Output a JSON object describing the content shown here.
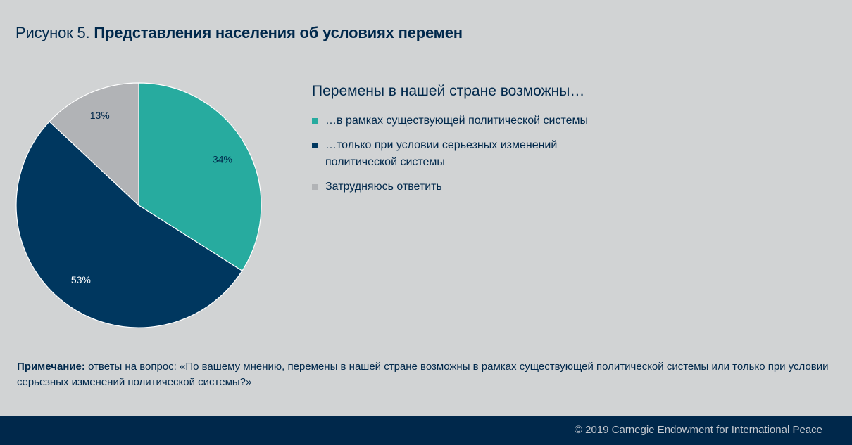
{
  "figure": {
    "prefix": "Рисунок 5.",
    "title": "Представления населения об условиях перемен"
  },
  "legend": {
    "title": "Перемены в нашей стране возможны…",
    "items": [
      {
        "label": "…в рамках существующей политической системы",
        "color": "#27ab9f"
      },
      {
        "label": "…только при условии серьезных изменений политической системы",
        "color": "#00375f"
      },
      {
        "label": "Затрудняюсь ответить",
        "color": "#b1b3b6"
      }
    ]
  },
  "chart_data": {
    "type": "pie",
    "series": [
      {
        "name": "…в рамках существующей политической системы",
        "value": 34,
        "label": "34%",
        "color": "#27ab9f",
        "label_color": "#00284b"
      },
      {
        "name": "…только при условии серьезных изменений политической системы",
        "value": 53,
        "label": "53%",
        "color": "#00375f",
        "label_color": "#ffffff"
      },
      {
        "name": "Затрудняюсь ответить",
        "value": 13,
        "label": "13%",
        "color": "#b1b3b6",
        "label_color": "#00284b"
      }
    ]
  },
  "note": {
    "label": "Примечание:",
    "text": " ответы на вопрос: «По вашему мнению, перемены в нашей стране возможны в рамках существующей политической системы или только при условии серьезных изменений политической системы?»"
  },
  "footer": {
    "copyright": "© 2019 Carnegie Endowment for International Peace"
  }
}
